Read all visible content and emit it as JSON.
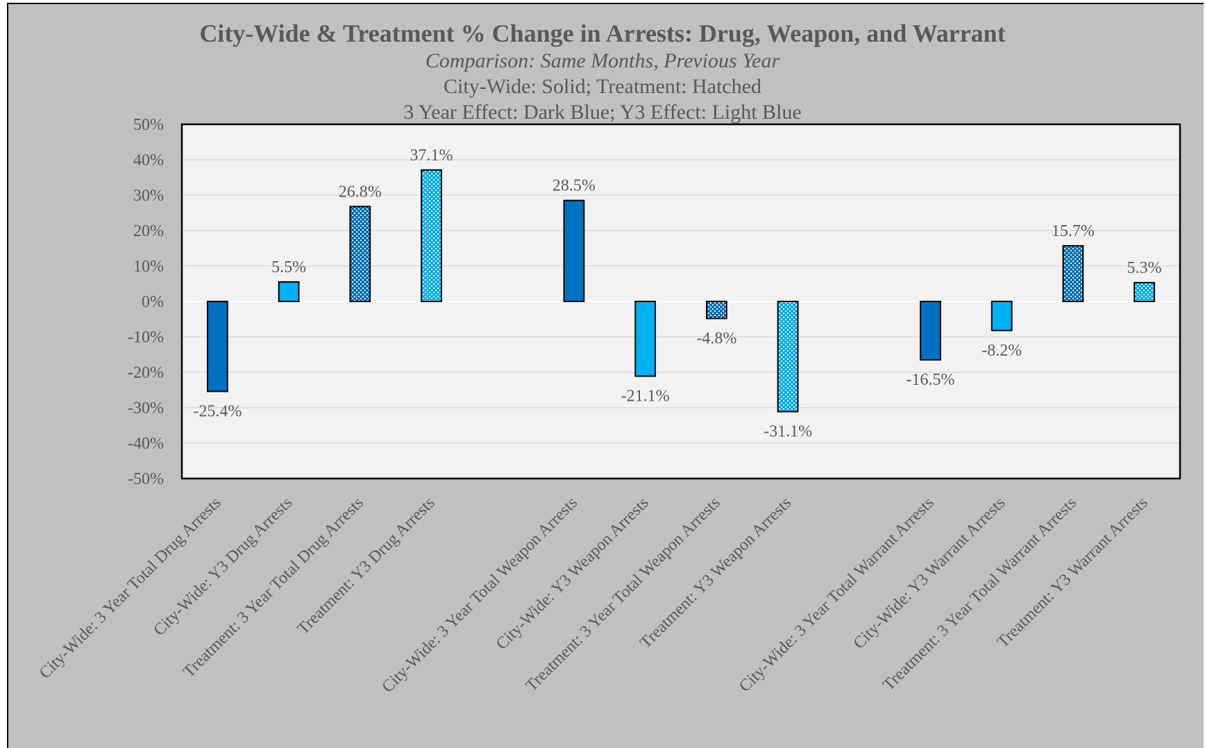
{
  "chart_data": {
    "type": "bar",
    "title": "City-Wide & Treatment % Change in Arrests: Drug, Weapon, and Warrant",
    "subtitles": [
      "Comparison: Same Months, Previous Year",
      "City-Wide: Solid; Treatment: Hatched",
      "3 Year Effect: Dark Blue; Y3 Effect: Light Blue"
    ],
    "ylim": [
      -50,
      50
    ],
    "y_ticks": [
      "50%",
      "40%",
      "30%",
      "20%",
      "10%",
      "0%",
      "-10%",
      "-20%",
      "-30%",
      "-40%",
      "-50%"
    ],
    "grid": true,
    "categories": [
      "City-Wide: 3 Year Total Drug Arrests",
      "City-Wide: Y3 Drug Arrests",
      "Treatment: 3 Year Total Drug Arrests",
      "Treatment: Y3 Drug Arrests",
      "City-Wide: 3 Year Total Weapon Arrests",
      "City-Wide: Y3 Weapon Arrests",
      "Treatment: 3 Year Total Weapon Arrests",
      "Treatment: Y3 Weapon Arrests",
      "City-Wide: 3 Year Total Warrant Arrests",
      "City-Wide: Y3 Warrant Arrests",
      "Treatment: 3 Year Total Warrant Arrests",
      "Treatment: Y3 Warrant Arrests"
    ],
    "values": [
      -25.4,
      5.5,
      26.8,
      37.1,
      28.5,
      -21.1,
      -4.8,
      -31.1,
      -16.5,
      -8.2,
      15.7,
      5.3
    ],
    "labels": [
      "-25.4%",
      "5.5%",
      "26.8%",
      "37.1%",
      "28.5%",
      "-21.1%",
      "-4.8%",
      "-31.1%",
      "-16.5%",
      "-8.2%",
      "15.7%",
      "5.3%"
    ],
    "styles": [
      "solid-dark",
      "solid-light",
      "hatched-dark",
      "hatched-light",
      "solid-dark",
      "solid-light",
      "hatched-dark",
      "hatched-light",
      "solid-dark",
      "solid-light",
      "hatched-dark",
      "hatched-light"
    ]
  },
  "colors": {
    "dark_blue": "#0070C0",
    "light_blue": "#00B0F0",
    "chart_background": "#c0c0c0",
    "plot_background": "#f2f2f2",
    "text": "#595959",
    "gridline": "#d9d9d9"
  }
}
